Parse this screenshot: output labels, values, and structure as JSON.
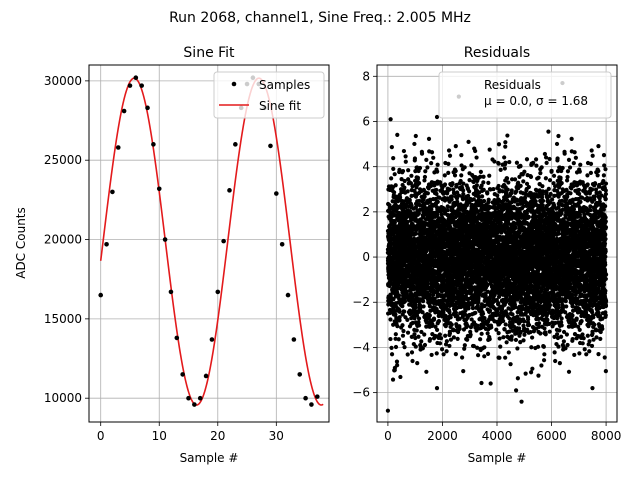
{
  "suptitle": "Run 2068, channel1, Sine Freq.: 2.005 MHz",
  "chart_data": [
    {
      "type": "scatter",
      "title": "Sine Fit",
      "xlabel": "Sample #",
      "ylabel": "ADC Counts",
      "xlim": [
        -2,
        39
      ],
      "ylim": [
        8500,
        31000
      ],
      "xticks": [
        0,
        10,
        20,
        30
      ],
      "yticks": [
        10000,
        15000,
        20000,
        25000,
        30000
      ],
      "grid": true,
      "legend_position": "upper right",
      "fit_model": {
        "amplitude": 10300,
        "offset": 19870,
        "period": 21.3,
        "phase_sample": 0.4
      },
      "series": [
        {
          "name": "Samples",
          "marker": "point",
          "color": "#000000",
          "x": [
            0,
            1,
            2,
            3,
            4,
            5,
            6,
            7,
            8,
            9,
            10,
            11,
            12,
            13,
            14,
            15,
            16,
            17,
            18,
            19,
            20,
            21,
            22,
            23,
            24,
            25,
            26,
            27,
            28,
            29,
            30,
            31,
            32,
            33,
            34,
            35,
            36,
            37
          ],
          "y": [
            16500,
            19700,
            23000,
            25800,
            28100,
            29700,
            30200,
            29700,
            28300,
            26000,
            23200,
            20000,
            16700,
            13800,
            11500,
            10000,
            9600,
            10000,
            11400,
            13700,
            16700,
            19900,
            23100,
            26000,
            28300,
            29800,
            30200,
            29800,
            28300,
            25900,
            22900,
            19700,
            16500,
            13700,
            11500,
            10000,
            9600,
            10100
          ]
        },
        {
          "name": "Sine fit",
          "marker": "line",
          "color": "#e31a1c",
          "x_range": [
            0,
            38
          ]
        }
      ]
    },
    {
      "type": "scatter",
      "title": "Residuals",
      "xlabel": "Sample #",
      "ylabel": "",
      "xlim": [
        -400,
        8400
      ],
      "ylim": [
        -7.3,
        8.5
      ],
      "xticks": [
        0,
        2000,
        4000,
        6000,
        8000
      ],
      "yticks": [
        -6,
        -4,
        -2,
        0,
        2,
        4,
        6,
        8
      ],
      "grid": true,
      "legend_position": "upper right",
      "legend_entry": {
        "name": "Residuals",
        "stats": "μ = 0.0, σ = 1.68"
      },
      "n_points": 8000,
      "mean": 0.0,
      "sigma": 1.68,
      "notable_points": [
        {
          "x": 0,
          "y": -6.8
        },
        {
          "x": 2600,
          "y": 7.1
        },
        {
          "x": 6400,
          "y": 7.7
        },
        {
          "x": 4900,
          "y": -6.4
        },
        {
          "x": 4700,
          "y": -5.9
        },
        {
          "x": 1800,
          "y": -5.8
        },
        {
          "x": 7500,
          "y": -5.8
        },
        {
          "x": 100,
          "y": 6.1
        },
        {
          "x": 1800,
          "y": 6.2
        }
      ]
    }
  ]
}
